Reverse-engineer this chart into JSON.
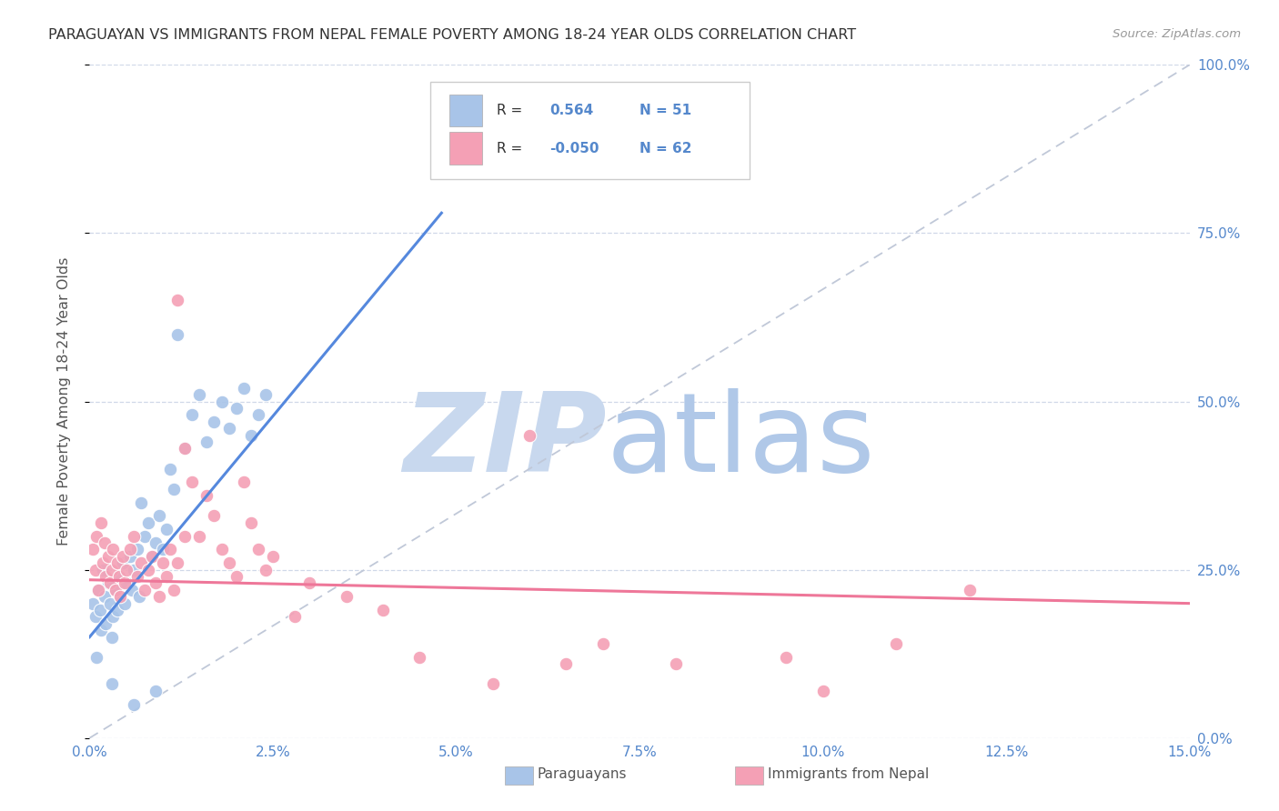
{
  "title": "PARAGUAYAN VS IMMIGRANTS FROM NEPAL FEMALE POVERTY AMONG 18-24 YEAR OLDS CORRELATION CHART",
  "source": "Source: ZipAtlas.com",
  "ylabel": "Female Poverty Among 18-24 Year Olds",
  "xtick_labels": [
    "0.0%",
    "2.5%",
    "5.0%",
    "7.5%",
    "10.0%",
    "12.5%",
    "15.0%"
  ],
  "xtick_vals": [
    0.0,
    2.5,
    5.0,
    7.5,
    10.0,
    12.5,
    15.0
  ],
  "ytick_labels_right": [
    "0.0%",
    "25.0%",
    "50.0%",
    "75.0%",
    "100.0%"
  ],
  "ytick_vals_right": [
    0.0,
    25.0,
    50.0,
    75.0,
    100.0
  ],
  "xmin": 0.0,
  "xmax": 15.0,
  "ymin": 0.0,
  "ymax": 100.0,
  "blue_R": 0.564,
  "blue_N": 51,
  "pink_R": -0.05,
  "pink_N": 62,
  "blue_color": "#a8c4e8",
  "pink_color": "#f4a0b5",
  "blue_line_color": "#5588dd",
  "pink_line_color": "#ee7799",
  "ref_line_color": "#c0c8d8",
  "watermark_zip": "#c8d8ee",
  "watermark_atlas": "#b0c8e8",
  "legend_label_blue": "Paraguayans",
  "legend_label_pink": "Immigrants from Nepal",
  "blue_line_x0": 0.0,
  "blue_line_y0": 15.0,
  "blue_line_x1": 4.8,
  "blue_line_y1": 78.0,
  "pink_line_x0": 0.0,
  "pink_line_y0": 23.5,
  "pink_line_x1": 15.0,
  "pink_line_y1": 20.0,
  "blue_scatter_x": [
    0.05,
    0.08,
    0.1,
    0.12,
    0.14,
    0.16,
    0.18,
    0.2,
    0.22,
    0.25,
    0.28,
    0.3,
    0.32,
    0.35,
    0.38,
    0.4,
    0.42,
    0.45,
    0.48,
    0.5,
    0.55,
    0.58,
    0.6,
    0.65,
    0.68,
    0.7,
    0.75,
    0.8,
    0.85,
    0.9,
    0.95,
    1.0,
    1.05,
    1.1,
    1.15,
    1.2,
    1.3,
    1.4,
    1.5,
    1.6,
    1.7,
    1.8,
    1.9,
    2.0,
    2.1,
    2.2,
    2.3,
    2.4,
    0.3,
    0.6,
    0.9
  ],
  "blue_scatter_y": [
    20.0,
    18.0,
    12.0,
    22.0,
    19.0,
    16.0,
    25.0,
    21.0,
    17.0,
    23.0,
    20.0,
    15.0,
    18.0,
    22.0,
    19.0,
    24.0,
    21.0,
    26.0,
    20.0,
    23.0,
    27.0,
    22.0,
    25.0,
    28.0,
    21.0,
    35.0,
    30.0,
    32.0,
    27.0,
    29.0,
    33.0,
    28.0,
    31.0,
    40.0,
    37.0,
    60.0,
    43.0,
    48.0,
    51.0,
    44.0,
    47.0,
    50.0,
    46.0,
    49.0,
    52.0,
    45.0,
    48.0,
    51.0,
    8.0,
    5.0,
    7.0
  ],
  "pink_scatter_x": [
    0.05,
    0.08,
    0.1,
    0.12,
    0.15,
    0.18,
    0.2,
    0.22,
    0.25,
    0.28,
    0.3,
    0.32,
    0.35,
    0.38,
    0.4,
    0.42,
    0.45,
    0.48,
    0.5,
    0.55,
    0.6,
    0.65,
    0.7,
    0.75,
    0.8,
    0.85,
    0.9,
    0.95,
    1.0,
    1.05,
    1.1,
    1.15,
    1.2,
    1.3,
    1.4,
    1.5,
    1.6,
    1.7,
    1.8,
    1.9,
    2.0,
    2.1,
    2.2,
    2.3,
    2.4,
    2.5,
    3.0,
    3.5,
    4.0,
    4.5,
    5.5,
    6.0,
    6.5,
    7.0,
    8.0,
    9.5,
    10.0,
    11.0,
    12.0,
    1.2,
    1.3,
    2.8
  ],
  "pink_scatter_y": [
    28.0,
    25.0,
    30.0,
    22.0,
    32.0,
    26.0,
    29.0,
    24.0,
    27.0,
    23.0,
    25.0,
    28.0,
    22.0,
    26.0,
    24.0,
    21.0,
    27.0,
    23.0,
    25.0,
    28.0,
    30.0,
    24.0,
    26.0,
    22.0,
    25.0,
    27.0,
    23.0,
    21.0,
    26.0,
    24.0,
    28.0,
    22.0,
    65.0,
    43.0,
    38.0,
    30.0,
    36.0,
    33.0,
    28.0,
    26.0,
    24.0,
    38.0,
    32.0,
    28.0,
    25.0,
    27.0,
    23.0,
    21.0,
    19.0,
    12.0,
    8.0,
    45.0,
    11.0,
    14.0,
    11.0,
    12.0,
    7.0,
    14.0,
    22.0,
    26.0,
    30.0,
    18.0
  ]
}
